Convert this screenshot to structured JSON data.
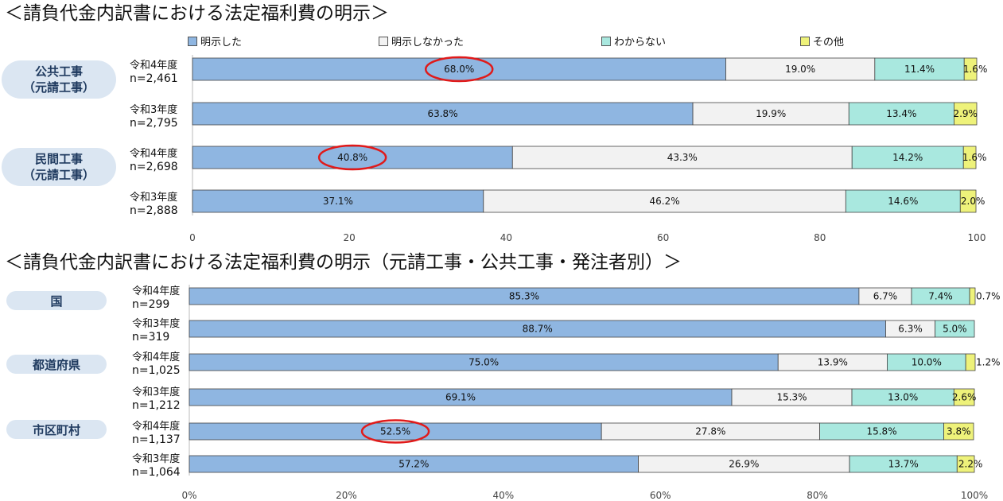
{
  "titles": {
    "top": "＜請負代金内訳書における法定福利費の明示＞",
    "bottom": "＜請負代金内訳書における法定福利費の明示（元請工事・公共工事・発注者別）＞"
  },
  "legend": [
    {
      "name": "明示した",
      "color": "#8fb6e1"
    },
    {
      "name": "明示しなかった",
      "color": "#f2f2f2"
    },
    {
      "name": "わからない",
      "color": "#a9e8df"
    },
    {
      "name": "その他",
      "color": "#eef27a"
    }
  ],
  "groups_top": [
    {
      "line1": "公共工事",
      "line2": "（元請工事）"
    },
    {
      "line1": "民間工事",
      "line2": "（元請工事）"
    }
  ],
  "groups_bottom": [
    "国",
    "都道府県",
    "市区町村"
  ],
  "chart_data": [
    {
      "type": "bar",
      "orientation": "horizontal-stacked",
      "title": "＜請負代金内訳書における法定福利費の明示＞",
      "series_names": [
        "明示した",
        "明示しなかった",
        "わからない",
        "その他"
      ],
      "xlim": [
        0,
        100
      ],
      "xticks": [
        "0",
        "20",
        "40",
        "60",
        "80",
        "100"
      ],
      "rows": [
        {
          "year": "令和4年度",
          "n": "n=2,461",
          "values": [
            68.0,
            19.0,
            11.4,
            1.6
          ],
          "labels": [
            "68.0%",
            "19.0%",
            "11.4%",
            "1.6%"
          ],
          "highlight": true
        },
        {
          "year": "令和3年度",
          "n": "n=2,795",
          "values": [
            63.8,
            19.9,
            13.4,
            2.9
          ],
          "labels": [
            "63.8%",
            "19.9%",
            "13.4%",
            "2.9%"
          ],
          "highlight": false
        },
        {
          "year": "令和4年度",
          "n": "n=2,698",
          "values": [
            40.8,
            43.3,
            14.2,
            1.6
          ],
          "labels": [
            "40.8%",
            "43.3%",
            "14.2%",
            "1.6%"
          ],
          "highlight": true
        },
        {
          "year": "令和3年度",
          "n": "n=2,888",
          "values": [
            37.1,
            46.2,
            14.6,
            2.0
          ],
          "labels": [
            "37.1%",
            "46.2%",
            "14.6%",
            "2.0%"
          ],
          "highlight": false
        }
      ]
    },
    {
      "type": "bar",
      "orientation": "horizontal-stacked",
      "title": "＜請負代金内訳書における法定福利費の明示（元請工事・公共工事・発注者別）＞",
      "series_names": [
        "明示した",
        "明示しなかった",
        "わからない",
        "その他"
      ],
      "xlim": [
        0,
        100
      ],
      "xticks": [
        "0%",
        "20%",
        "40%",
        "60%",
        "80%",
        "100%"
      ],
      "rows": [
        {
          "year": "令和4年度",
          "n": "n=299",
          "values": [
            85.3,
            6.7,
            7.4,
            0.7
          ],
          "labels": [
            "85.3%",
            "6.7%",
            "7.4%",
            "0.7%"
          ],
          "highlight": false
        },
        {
          "year": "令和3年度",
          "n": "n=319",
          "values": [
            88.7,
            6.3,
            5.0,
            0
          ],
          "labels": [
            "88.7%",
            "6.3%",
            "5.0%",
            ""
          ],
          "highlight": false
        },
        {
          "year": "令和4年度",
          "n": "n=1,025",
          "values": [
            75.0,
            13.9,
            10.0,
            1.2
          ],
          "labels": [
            "75.0%",
            "13.9%",
            "10.0%",
            "1.2%"
          ],
          "highlight": false
        },
        {
          "year": "令和3年度",
          "n": "n=1,212",
          "values": [
            69.1,
            15.3,
            13.0,
            2.6
          ],
          "labels": [
            "69.1%",
            "15.3%",
            "13.0%",
            "2.6%"
          ],
          "highlight": false
        },
        {
          "year": "令和4年度",
          "n": "n=1,137",
          "values": [
            52.5,
            27.8,
            15.8,
            3.8
          ],
          "labels": [
            "52.5%",
            "27.8%",
            "15.8%",
            "3.8%"
          ],
          "highlight": true
        },
        {
          "year": "令和3年度",
          "n": "n=1,064",
          "values": [
            57.2,
            26.9,
            13.7,
            2.2
          ],
          "labels": [
            "57.2%",
            "26.9%",
            "13.7%",
            "2.2%"
          ],
          "highlight": false
        }
      ]
    }
  ]
}
